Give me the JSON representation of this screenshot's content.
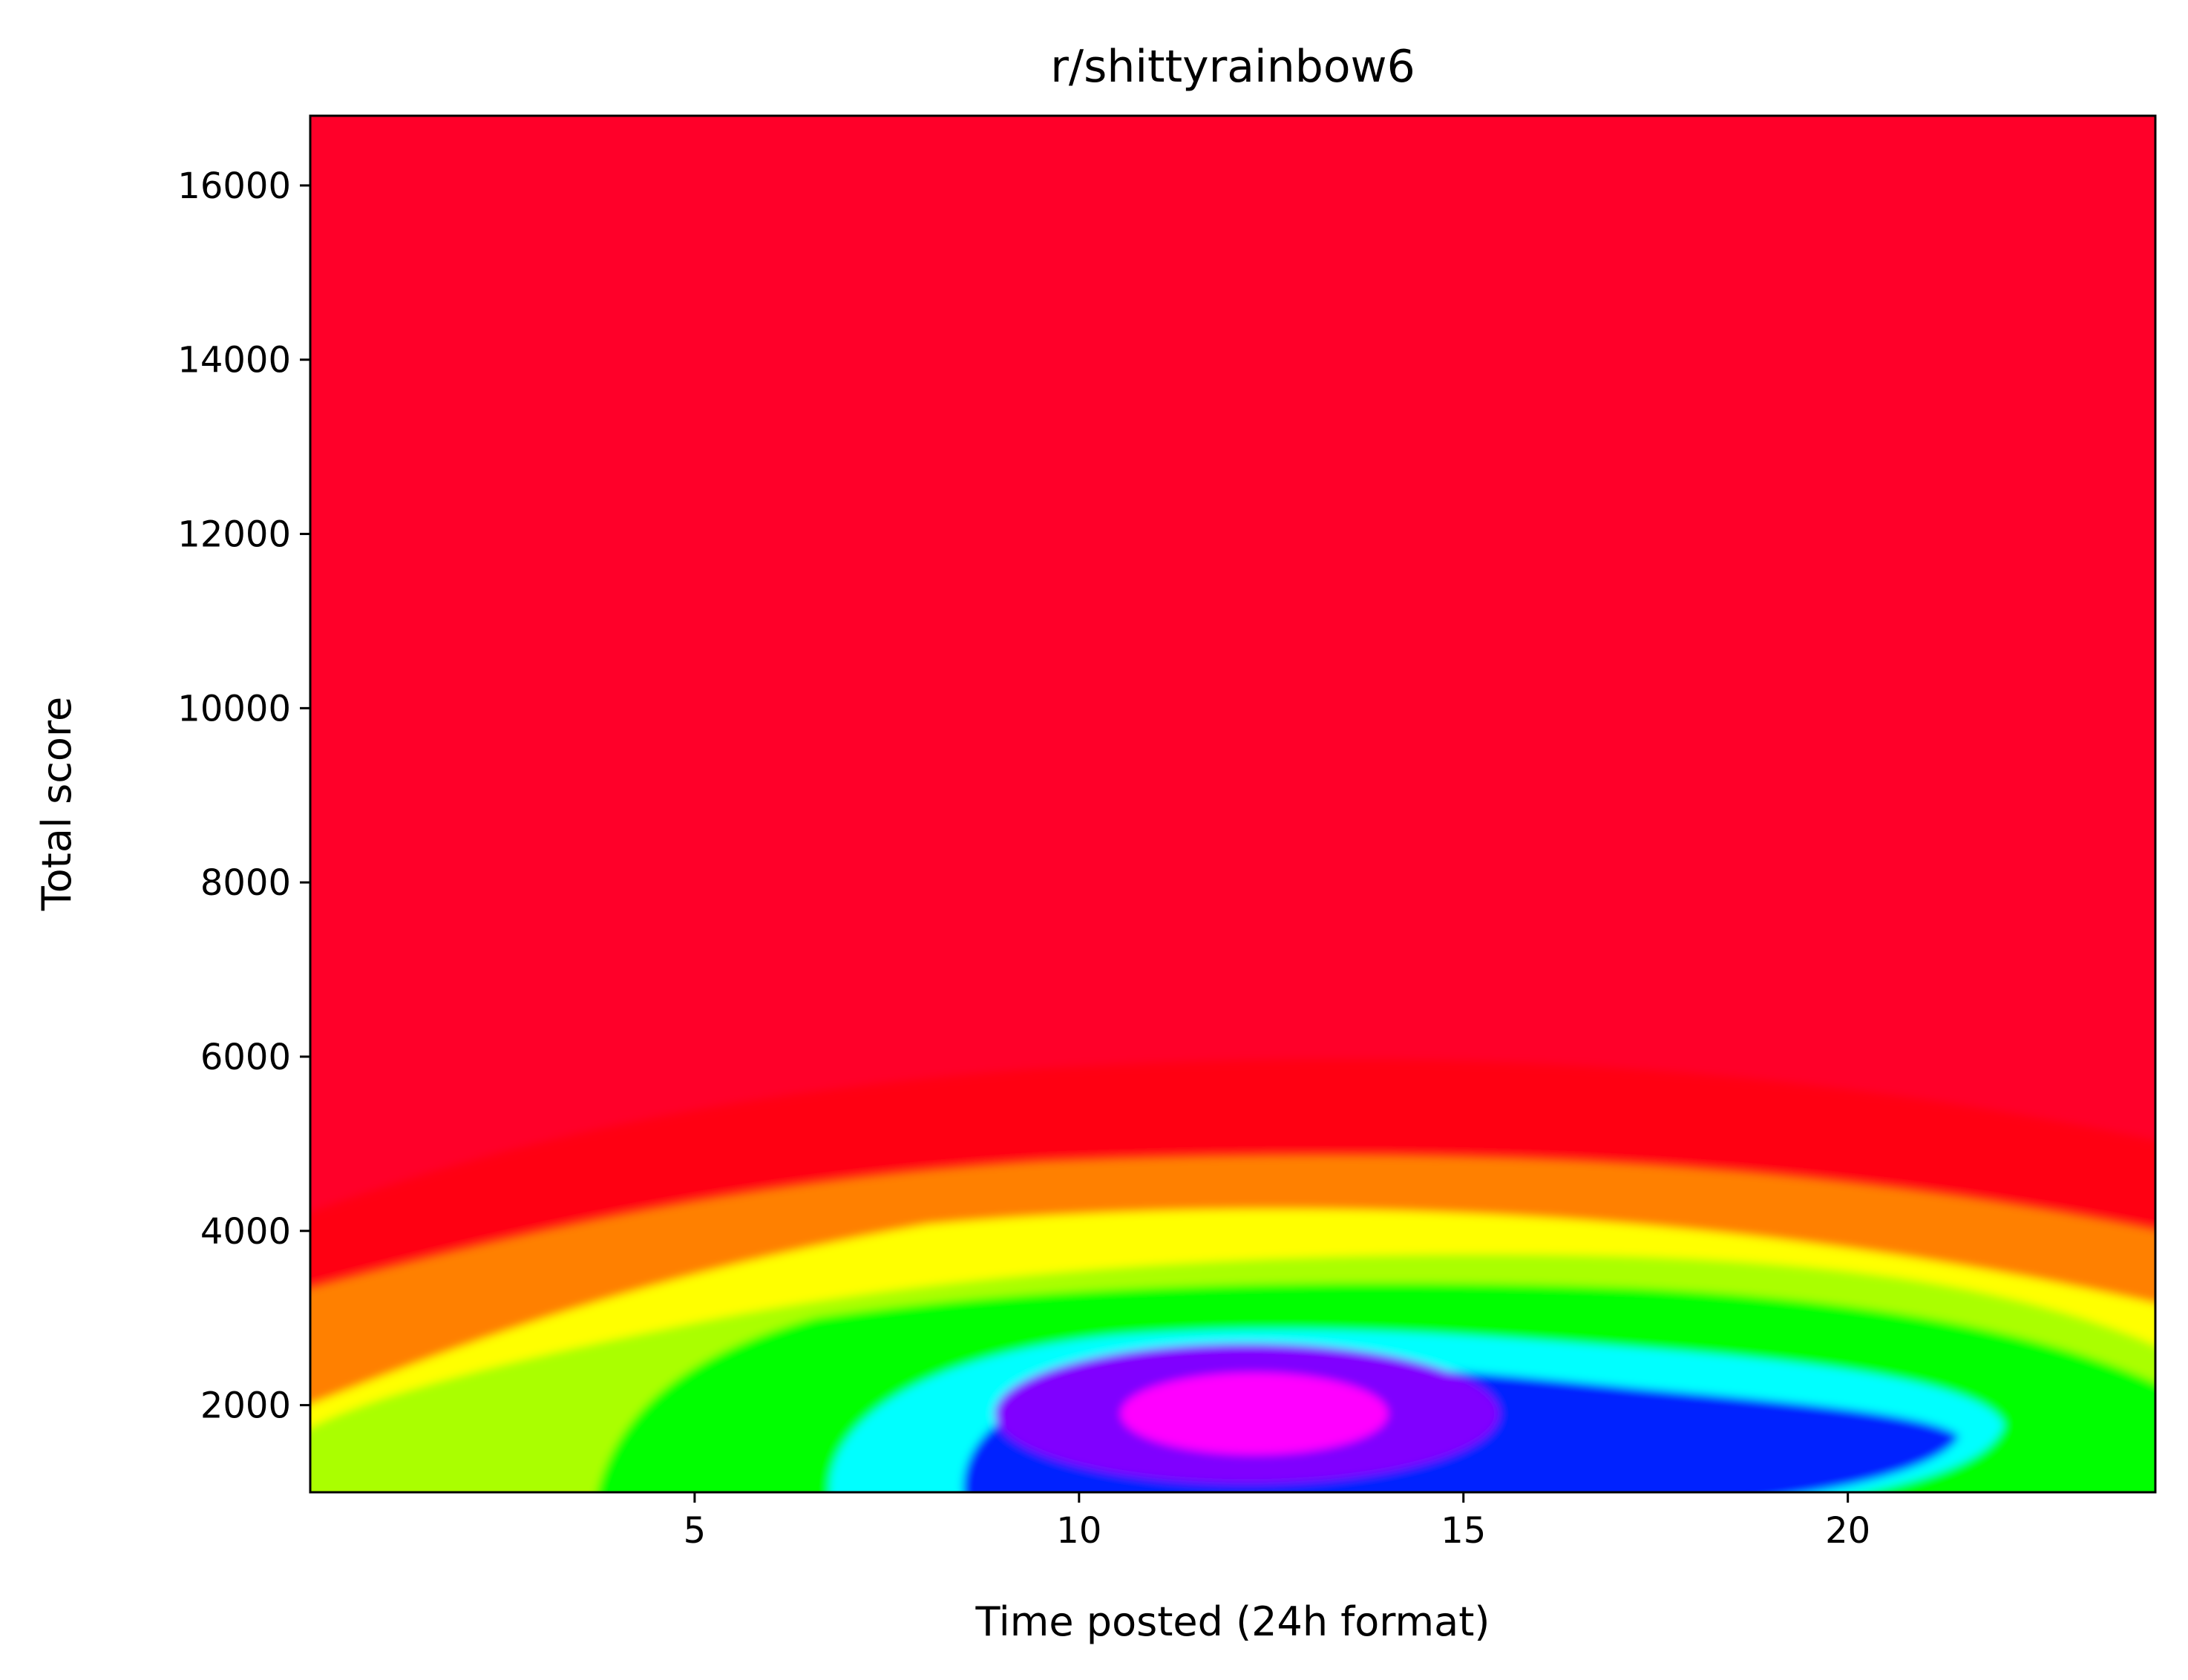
{
  "chart_data": {
    "type": "heatmap",
    "title": "r/shittyrainbow6",
    "xlabel": "Time posted (24h format)",
    "ylabel": "Total score",
    "xlim": [
      0,
      24
    ],
    "ylim": [
      1000,
      16800
    ],
    "xticks": [
      5,
      10,
      15,
      20
    ],
    "yticks": [
      2000,
      4000,
      6000,
      8000,
      10000,
      12000,
      14000,
      16000
    ],
    "colormap": "gist_rainbow",
    "colormap_stops": [
      "#ff0029",
      "#ff0000",
      "#ffff00",
      "#00ff00",
      "#00ffff",
      "#0000ff",
      "#ff00ff"
    ],
    "density_peaks": [
      {
        "x": 12.0,
        "y": 1850,
        "level": "highest"
      },
      {
        "x": 18.5,
        "y": 1800,
        "level": "high"
      },
      {
        "x": 6.0,
        "y": 1750,
        "level": "medium"
      },
      {
        "x": 0.5,
        "y": 1700,
        "level": "low"
      }
    ]
  }
}
